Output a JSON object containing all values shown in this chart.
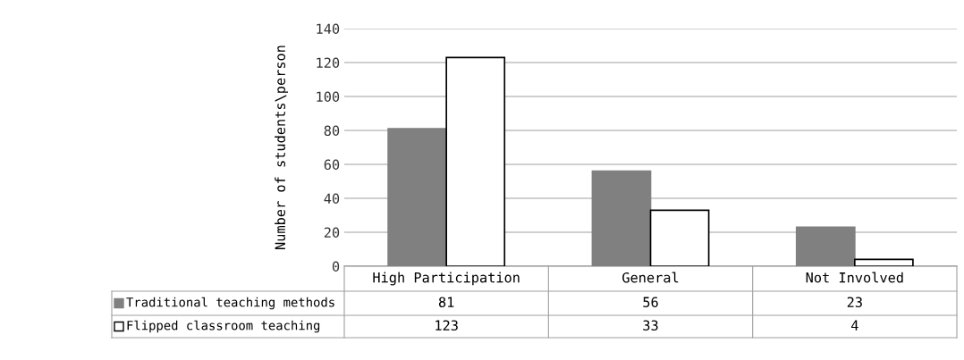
{
  "chart_data": {
    "type": "bar",
    "ylabel": "Number of students\\person",
    "categories": [
      "High Participation",
      "General",
      "Not Involved"
    ],
    "series": [
      {
        "name": "Traditional teaching methods",
        "color": "#808080",
        "values": [
          81,
          56,
          23
        ]
      },
      {
        "name": "Flipped classroom teaching",
        "color": "#ffffff",
        "values": [
          123,
          33,
          4
        ]
      }
    ],
    "ylim": [
      0,
      140
    ],
    "yticks": [
      0,
      20,
      40,
      60,
      80,
      100,
      120,
      140
    ],
    "grid": "y",
    "legend": "bottom",
    "data_labels": true
  }
}
